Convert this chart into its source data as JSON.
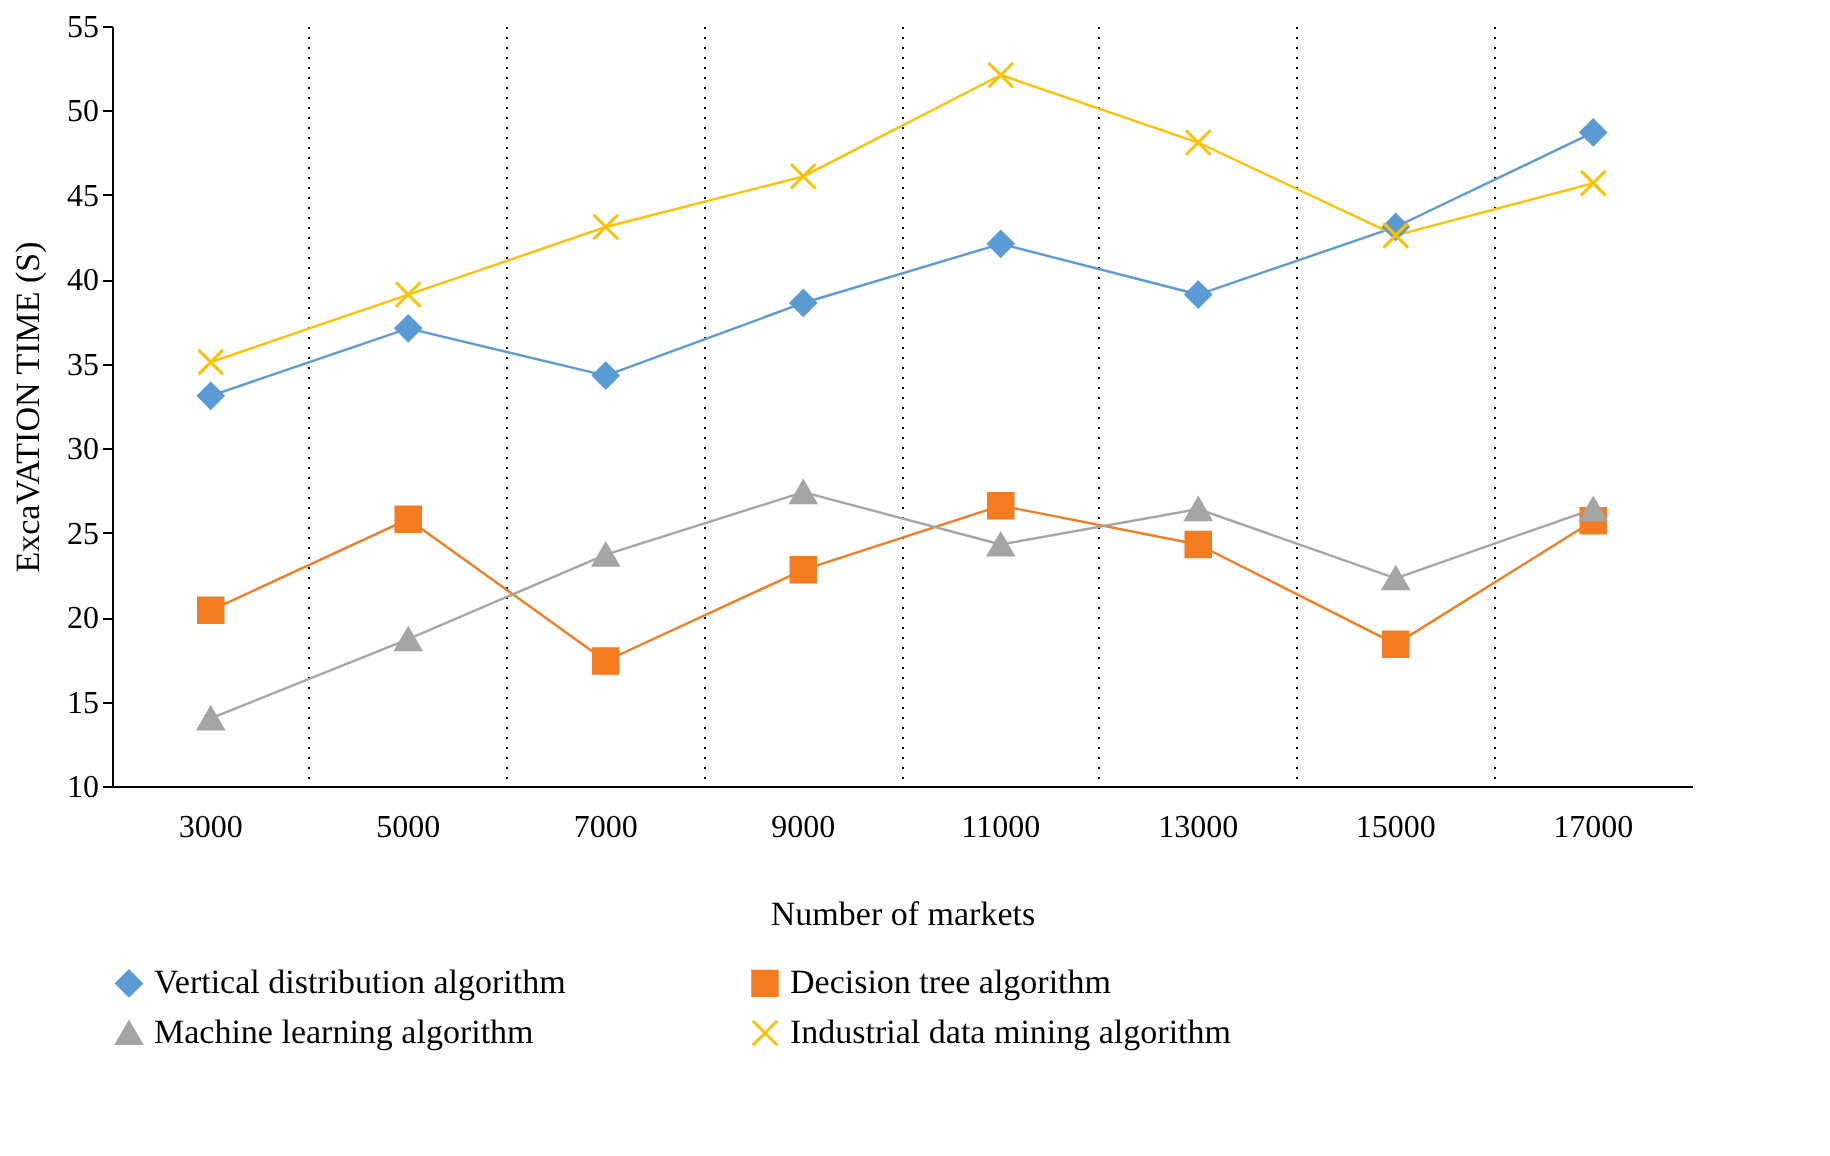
{
  "chart_data": {
    "type": "line",
    "xlabel": "Number of markets",
    "ylabel": "ExcaVATION TIME (S)",
    "categories": [
      "3000",
      "5000",
      "7000",
      "9000",
      "11000",
      "13000",
      "15000",
      "17000"
    ],
    "series": [
      {
        "name": "Vertical distribution algorithm",
        "color": "#5b9bd5",
        "marker": "diamond",
        "values": [
          33.1,
          37.1,
          34.3,
          38.6,
          42.1,
          39.1,
          43.1,
          48.7
        ]
      },
      {
        "name": "Decision tree algorithm",
        "color": "#f47c20",
        "marker": "square",
        "values": [
          20.4,
          25.8,
          17.4,
          22.8,
          26.6,
          24.3,
          18.4,
          25.7
        ]
      },
      {
        "name": "Machine learning algorithm",
        "color": "#a5a5a5",
        "marker": "triangle",
        "values": [
          14.0,
          18.7,
          23.7,
          27.4,
          24.3,
          26.4,
          22.3,
          26.4
        ]
      },
      {
        "name": "Industrial data mining algorithm",
        "color": "#ffc000",
        "marker": "cross",
        "values": [
          35.1,
          39.1,
          43.1,
          46.1,
          52.1,
          48.1,
          42.6,
          45.7
        ]
      }
    ],
    "ylim": [
      10,
      55
    ],
    "yticks": [
      10,
      15,
      20,
      25,
      30,
      35,
      40,
      45,
      50,
      55
    ],
    "grid": "x",
    "legend": "bottom"
  }
}
